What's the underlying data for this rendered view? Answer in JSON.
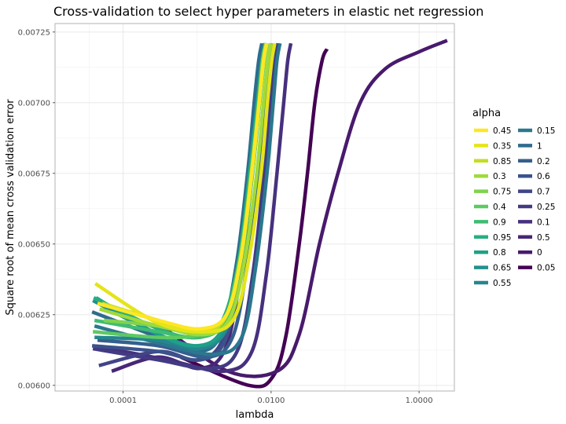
{
  "chart_data": {
    "type": "line",
    "title": "Cross-validation to select hyper parameters in elastic net regression",
    "xlabel": "lambda",
    "ylabel": "Square root of mean cross validation error",
    "x_scale": "log10",
    "xlim": [
      1.2e-05,
      3.0
    ],
    "ylim": [
      0.00598,
      0.00728
    ],
    "x_ticks": [
      {
        "value": 0.0001,
        "label": "0.0001"
      },
      {
        "value": 0.01,
        "label": "0.0100"
      },
      {
        "value": 1.0,
        "label": "1.0000"
      }
    ],
    "y_ticks": [
      {
        "value": 0.006,
        "label": "0.00600"
      },
      {
        "value": 0.00625,
        "label": "0.00625"
      },
      {
        "value": 0.0065,
        "label": "0.00650"
      },
      {
        "value": 0.00675,
        "label": "0.00675"
      },
      {
        "value": 0.007,
        "label": "0.00700"
      },
      {
        "value": 0.00725,
        "label": "0.00725"
      }
    ],
    "grid": true,
    "legend": {
      "title": "alpha",
      "position": "right",
      "columns": 2
    },
    "series": [
      {
        "name": "0.45",
        "color": "#FDE725",
        "x": [
          4.5e-05,
          0.0003,
          0.0011,
          0.0025,
          0.0039,
          0.0055,
          0.0069,
          0.0079,
          0.0087
        ],
        "y": [
          0.00629,
          0.00623,
          0.0062,
          0.00625,
          0.00645,
          0.00675,
          0.007,
          0.00715,
          0.00721
        ]
      },
      {
        "name": "0.35",
        "color": "#E5E419",
        "x": [
          4.2e-05,
          0.0003,
          0.0014,
          0.0032,
          0.0051,
          0.0073,
          0.0089,
          0.0102,
          0.0112
        ],
        "y": [
          0.00636,
          0.00622,
          0.00619,
          0.00624,
          0.00646,
          0.00675,
          0.007,
          0.00715,
          0.00721
        ]
      },
      {
        "name": "0.85",
        "color": "#C2DF23",
        "x": [
          5.2e-05,
          0.0003,
          0.0011,
          0.0024,
          0.0039,
          0.0054,
          0.0069,
          0.008,
          0.0088
        ],
        "y": [
          0.00629,
          0.00623,
          0.00619,
          0.00624,
          0.00645,
          0.00675,
          0.007,
          0.00715,
          0.00721
        ]
      },
      {
        "name": "0.3",
        "color": "#9FDA3A",
        "x": [
          4.8e-05,
          0.0003,
          0.0013,
          0.0028,
          0.0045,
          0.0064,
          0.0079,
          0.0091,
          0.01
        ],
        "y": [
          0.00627,
          0.00621,
          0.00618,
          0.00624,
          0.00646,
          0.00675,
          0.007,
          0.00715,
          0.00721
        ]
      },
      {
        "name": "0.75",
        "color": "#7FD34E",
        "x": [
          5.5e-05,
          0.0003,
          0.0011,
          0.0024,
          0.0038,
          0.0054,
          0.0068,
          0.0077,
          0.0085
        ],
        "y": [
          0.00623,
          0.00621,
          0.00618,
          0.00624,
          0.00645,
          0.00675,
          0.007,
          0.00715,
          0.00721
        ]
      },
      {
        "name": "0.4",
        "color": "#5EC962",
        "x": [
          3.9e-05,
          0.0003,
          0.0011,
          0.0024,
          0.004,
          0.0056,
          0.007,
          0.0081,
          0.0089
        ],
        "y": [
          0.00619,
          0.00617,
          0.00618,
          0.00624,
          0.00646,
          0.00675,
          0.007,
          0.00715,
          0.00721
        ]
      },
      {
        "name": "0.9",
        "color": "#3FBC73",
        "x": [
          4.1e-05,
          0.0003,
          0.0011,
          0.0024,
          0.0039,
          0.0055,
          0.0069,
          0.0079,
          0.0087
        ],
        "y": [
          0.00623,
          0.00619,
          0.00617,
          0.00623,
          0.00645,
          0.00675,
          0.007,
          0.00715,
          0.00721
        ]
      },
      {
        "name": "0.95",
        "color": "#28AE80",
        "x": [
          4e-05,
          0.0003,
          0.001,
          0.0022,
          0.0037,
          0.0052,
          0.0066,
          0.0076,
          0.0084
        ],
        "y": [
          0.00631,
          0.0062,
          0.00617,
          0.00623,
          0.00645,
          0.00675,
          0.007,
          0.00715,
          0.00721
        ]
      },
      {
        "name": "0.8",
        "color": "#1FA088",
        "x": [
          4.3e-05,
          0.0003,
          0.001,
          0.0022,
          0.0036,
          0.0051,
          0.0065,
          0.0075,
          0.0083
        ],
        "y": [
          0.00631,
          0.00618,
          0.00614,
          0.0062,
          0.00643,
          0.00675,
          0.007,
          0.00715,
          0.00721
        ]
      },
      {
        "name": "0.65",
        "color": "#21918C",
        "x": [
          3.9e-05,
          0.0003,
          0.0011,
          0.0024,
          0.0038,
          0.0054,
          0.0067,
          0.0077,
          0.0085
        ],
        "y": [
          0.0063,
          0.00618,
          0.00614,
          0.0062,
          0.00643,
          0.00675,
          0.007,
          0.00715,
          0.00721
        ]
      },
      {
        "name": "0.55",
        "color": "#24868E",
        "x": [
          4.1e-05,
          0.0003,
          0.0011,
          0.0025,
          0.004,
          0.0056,
          0.007,
          0.0081,
          0.0089
        ],
        "y": [
          0.00617,
          0.00616,
          0.00613,
          0.0062,
          0.00644,
          0.00675,
          0.007,
          0.00715,
          0.00721
        ]
      },
      {
        "name": "0.15",
        "color": "#2A788E",
        "x": [
          4.1e-05,
          0.0003,
          0.0017,
          0.004,
          0.0062,
          0.0088,
          0.0107,
          0.012,
          0.0132
        ],
        "y": [
          0.00621,
          0.00615,
          0.00611,
          0.00617,
          0.00642,
          0.00675,
          0.007,
          0.00715,
          0.00721
        ]
      },
      {
        "name": "1",
        "color": "#2F6C8E",
        "x": [
          3.8e-05,
          0.0003,
          0.001,
          0.0021,
          0.0034,
          0.0048,
          0.0059,
          0.0068,
          0.0075
        ],
        "y": [
          0.00626,
          0.00617,
          0.00612,
          0.00618,
          0.00643,
          0.00675,
          0.007,
          0.00715,
          0.00721
        ]
      },
      {
        "name": "0.2",
        "color": "#355F8D",
        "x": [
          4.5e-05,
          0.0003,
          0.0014,
          0.003,
          0.0047,
          0.0067,
          0.0082,
          0.0094,
          0.0103
        ],
        "y": [
          0.00616,
          0.00614,
          0.0061,
          0.00617,
          0.00642,
          0.00675,
          0.007,
          0.00715,
          0.00721
        ]
      },
      {
        "name": "0.6",
        "color": "#3B528B",
        "x": [
          3.8e-05,
          0.0003,
          0.0011,
          0.0024,
          0.0039,
          0.0055,
          0.0068,
          0.0079,
          0.0087
        ],
        "y": [
          0.00614,
          0.00612,
          0.00609,
          0.00616,
          0.00642,
          0.00675,
          0.007,
          0.00715,
          0.00721
        ]
      },
      {
        "name": "0.7",
        "color": "#414487",
        "x": [
          4.7e-05,
          0.0003,
          0.001,
          0.0022,
          0.0036,
          0.0051,
          0.0064,
          0.0074,
          0.0081
        ],
        "y": [
          0.00607,
          0.00612,
          0.00609,
          0.00616,
          0.00642,
          0.00675,
          0.007,
          0.00715,
          0.00721
        ]
      },
      {
        "name": "0.25",
        "color": "#433A83",
        "x": [
          3.9e-05,
          0.0003,
          0.0016,
          0.0036,
          0.0057,
          0.008,
          0.0098,
          0.0112,
          0.0123
        ],
        "y": [
          0.00613,
          0.00609,
          0.00606,
          0.00613,
          0.0064,
          0.00675,
          0.007,
          0.00715,
          0.00721
        ]
      },
      {
        "name": "0.1",
        "color": "#46307E",
        "x": [
          4e-05,
          0.0004,
          0.0023,
          0.0055,
          0.0086,
          0.012,
          0.0148,
          0.0168,
          0.0185
        ],
        "y": [
          0.00614,
          0.00609,
          0.00605,
          0.00612,
          0.00639,
          0.00675,
          0.007,
          0.00715,
          0.00721
        ]
      },
      {
        "name": "0.5",
        "color": "#482677",
        "x": [
          7e-05,
          0.0003,
          0.0011,
          0.0024,
          0.0039,
          0.0055,
          0.0069,
          0.0079,
          0.0087
        ],
        "y": [
          0.00605,
          0.0061,
          0.00606,
          0.00613,
          0.0064,
          0.00675,
          0.007,
          0.00715,
          0.00721
        ]
      },
      {
        "name": "0",
        "color": "#481A6C",
        "x": [
          0.00033,
          0.0026,
          0.012,
          0.024,
          0.045,
          0.08,
          0.16,
          0.35,
          1.0,
          2.4
        ],
        "y": [
          0.00621,
          0.00605,
          0.00605,
          0.00618,
          0.0065,
          0.00675,
          0.007,
          0.00712,
          0.00718,
          0.00722
        ]
      },
      {
        "name": "0.05",
        "color": "#440154",
        "x": [
          0.0006,
          0.005,
          0.0105,
          0.016,
          0.024,
          0.031,
          0.039,
          0.049,
          0.057
        ],
        "y": [
          0.0061,
          0.006,
          0.00603,
          0.00618,
          0.0065,
          0.00675,
          0.007,
          0.00715,
          0.00719
        ]
      }
    ]
  }
}
